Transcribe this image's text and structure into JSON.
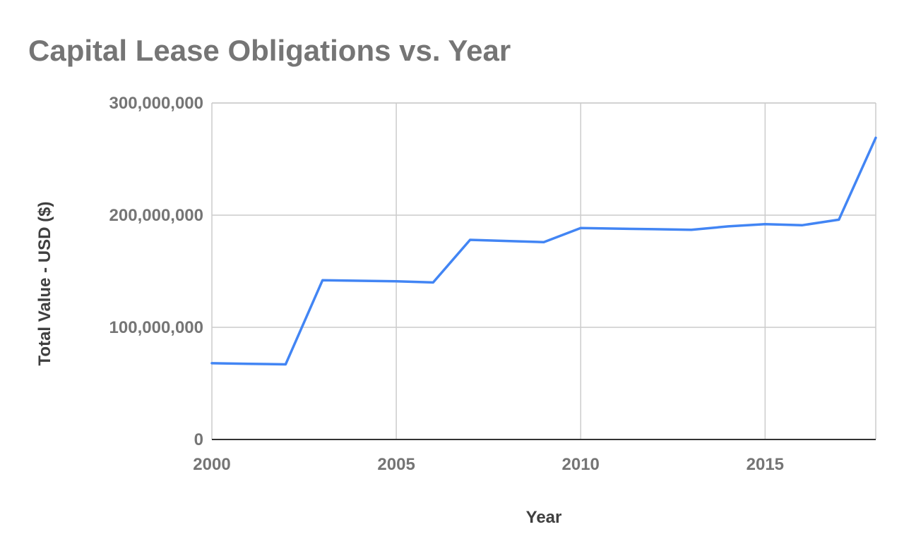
{
  "chart_data": {
    "type": "line",
    "title": "Capital Lease Obligations vs. Year",
    "xlabel": "Year",
    "ylabel": "Total Value - USD ($)",
    "xlim": [
      2000,
      2018
    ],
    "ylim": [
      0,
      300000000
    ],
    "x_ticks": [
      2000,
      2005,
      2010,
      2015
    ],
    "x_tick_labels": [
      "2000",
      "2005",
      "2010",
      "2015"
    ],
    "y_ticks": [
      0,
      100000000,
      200000000,
      300000000
    ],
    "y_tick_labels": [
      "0",
      "100,000,000",
      "200,000,000",
      "300,000,000"
    ],
    "grid": true,
    "legend": "none",
    "series": [
      {
        "color": "#4285f4",
        "x": [
          2000,
          2001,
          2002,
          2003,
          2004,
          2005,
          2006,
          2007,
          2008,
          2009,
          2010,
          2011,
          2012,
          2013,
          2014,
          2015,
          2016,
          2017,
          2018
        ],
        "values": [
          68000000,
          67500000,
          67000000,
          142000000,
          141500000,
          141000000,
          140000000,
          178000000,
          177000000,
          176000000,
          188500000,
          188000000,
          187500000,
          187000000,
          190000000,
          192000000,
          191000000,
          196000000,
          269000000
        ]
      }
    ]
  }
}
